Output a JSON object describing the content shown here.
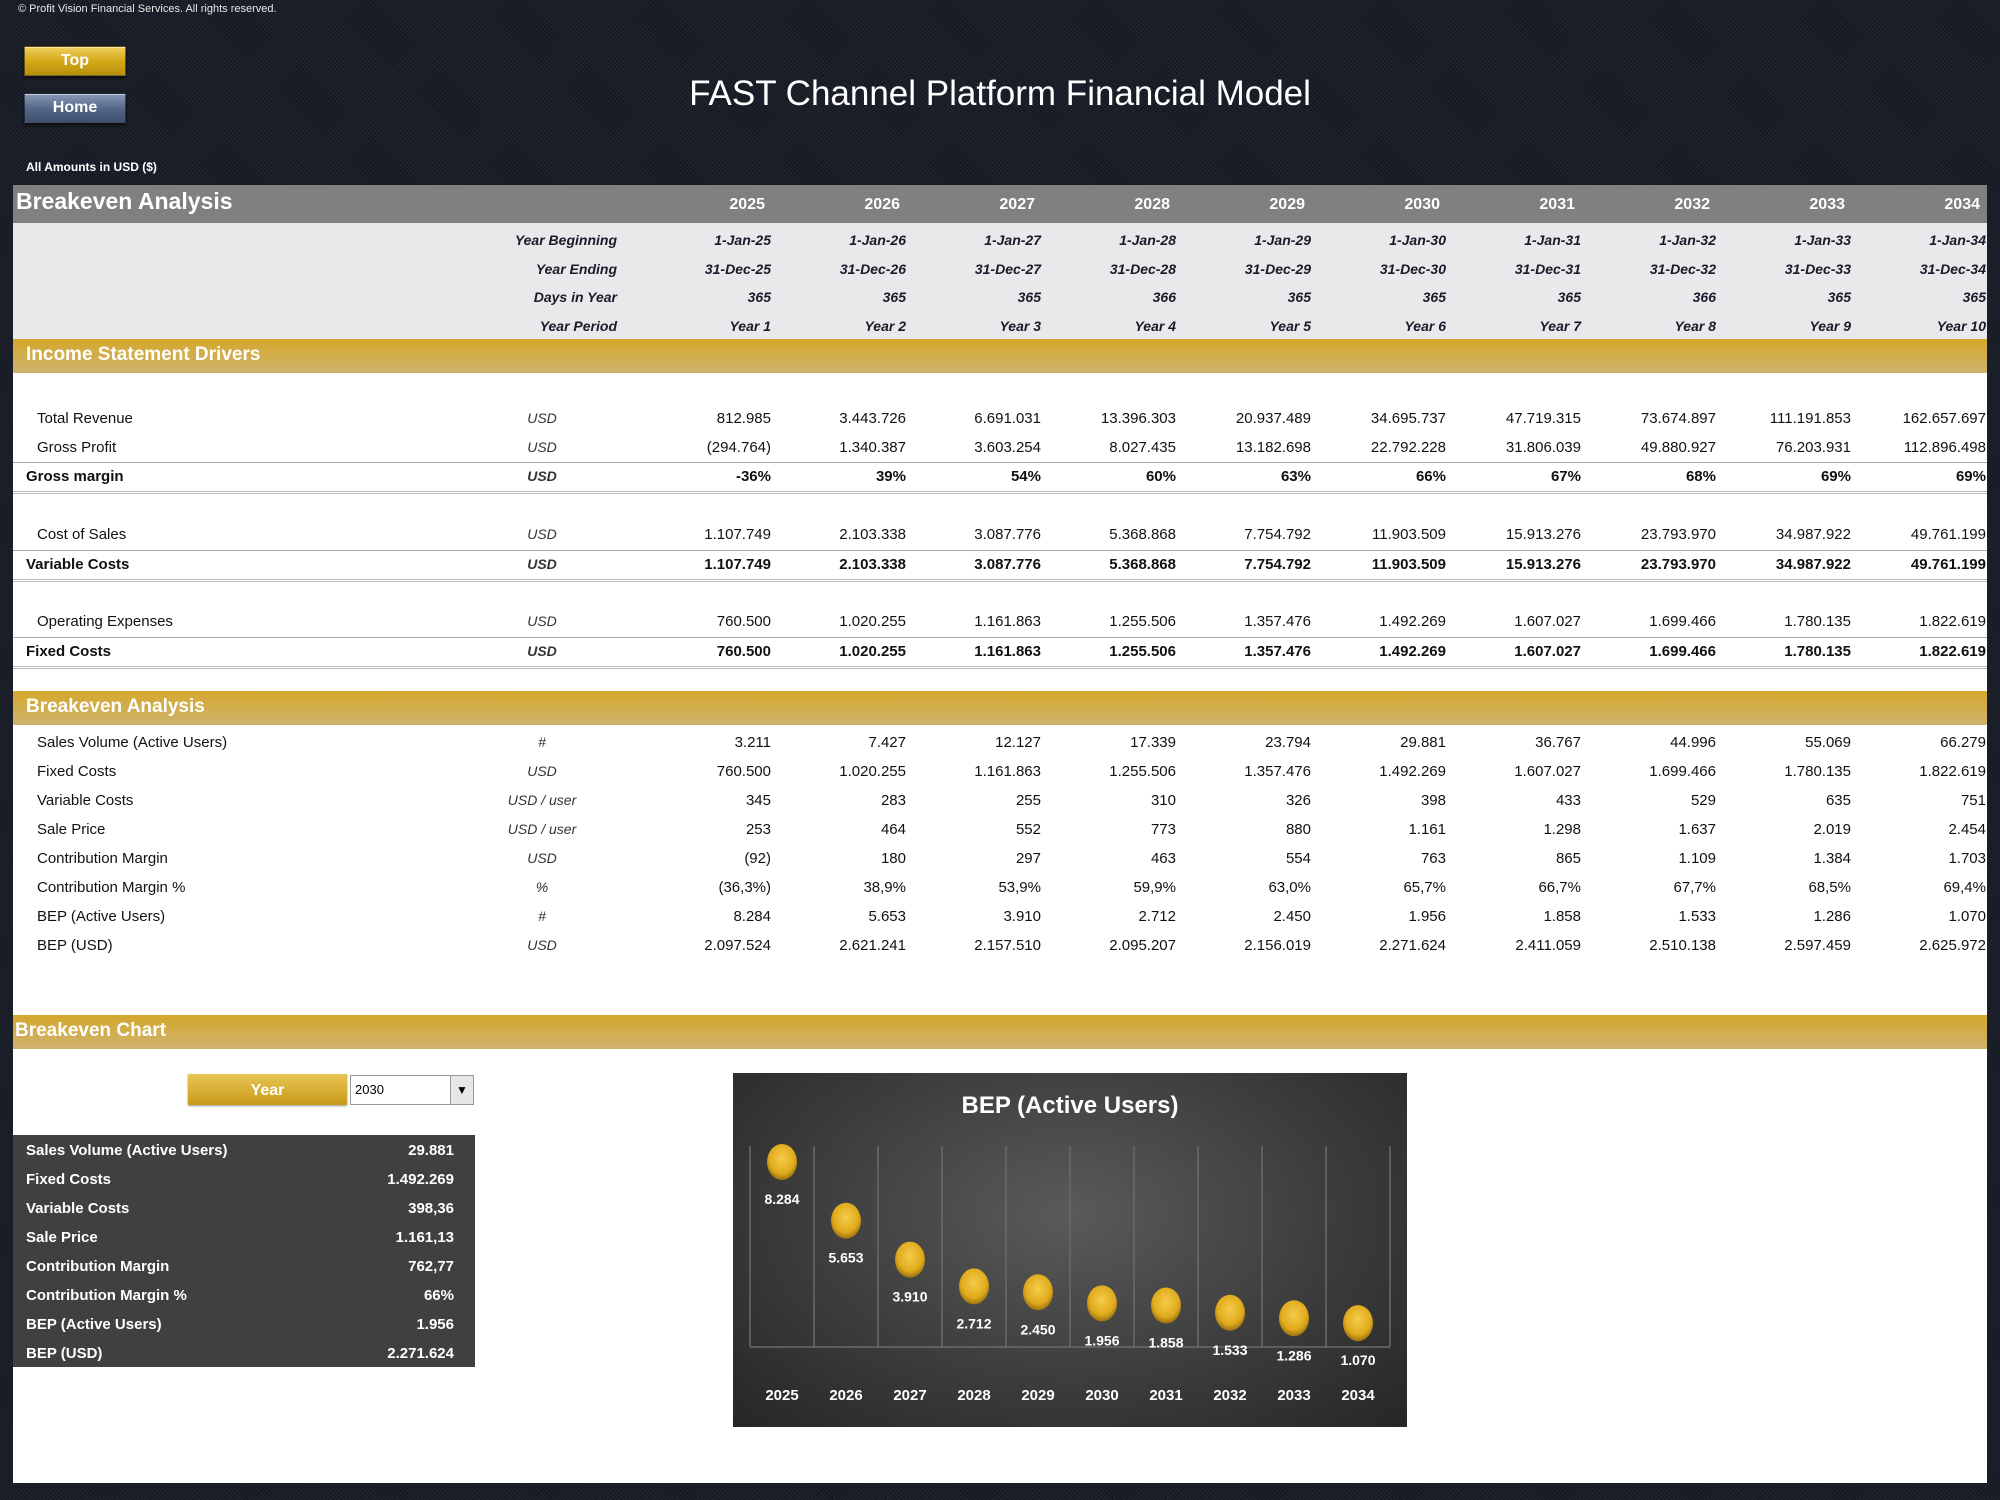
{
  "copyright": "© Profit Vision Financial Services. All rights reserved.",
  "nav": {
    "top_label": "Top",
    "home_label": "Home"
  },
  "title": "FAST Channel Platform Financial Model",
  "amounts_note": "All Amounts in  USD ($)",
  "header": {
    "title": "Breakeven Analysis",
    "years": [
      "2025",
      "2026",
      "2027",
      "2028",
      "2029",
      "2030",
      "2031",
      "2032",
      "2033",
      "2034"
    ],
    "date_rows": [
      {
        "label": "Year Beginning",
        "values": [
          "1-Jan-25",
          "1-Jan-26",
          "1-Jan-27",
          "1-Jan-28",
          "1-Jan-29",
          "1-Jan-30",
          "1-Jan-31",
          "1-Jan-32",
          "1-Jan-33",
          "1-Jan-34"
        ]
      },
      {
        "label": "Year Ending",
        "values": [
          "31-Dec-25",
          "31-Dec-26",
          "31-Dec-27",
          "31-Dec-28",
          "31-Dec-29",
          "31-Dec-30",
          "31-Dec-31",
          "31-Dec-32",
          "31-Dec-33",
          "31-Dec-34"
        ]
      },
      {
        "label": "Days in Year",
        "values": [
          "365",
          "365",
          "365",
          "366",
          "365",
          "365",
          "365",
          "366",
          "365",
          "365"
        ]
      },
      {
        "label": "Year Period",
        "values": [
          "Year 1",
          "Year 2",
          "Year 3",
          "Year 4",
          "Year 5",
          "Year 6",
          "Year 7",
          "Year 8",
          "Year 9",
          "Year 10"
        ]
      }
    ]
  },
  "income": {
    "title": "Income Statement Drivers",
    "rows": [
      {
        "label": "Total Revenue",
        "unit": "USD",
        "values": [
          "812.985",
          "3.443.726",
          "6.691.031",
          "13.396.303",
          "20.937.489",
          "34.695.737",
          "47.719.315",
          "73.674.897",
          "111.191.853",
          "162.657.697"
        ]
      },
      {
        "label": "Gross Profit",
        "unit": "USD",
        "values": [
          "(294.764)",
          "1.340.387",
          "3.603.254",
          "8.027.435",
          "13.182.698",
          "22.792.228",
          "31.806.039",
          "49.880.927",
          "76.203.931",
          "112.896.498"
        ]
      },
      {
        "label": "Gross margin",
        "unit": "USD",
        "values": [
          "-36%",
          "39%",
          "54%",
          "60%",
          "63%",
          "66%",
          "67%",
          "68%",
          "69%",
          "69%"
        ]
      },
      {
        "label": "Cost of Sales",
        "unit": "USD",
        "values": [
          "1.107.749",
          "2.103.338",
          "3.087.776",
          "5.368.868",
          "7.754.792",
          "11.903.509",
          "15.913.276",
          "23.793.970",
          "34.987.922",
          "49.761.199"
        ]
      },
      {
        "label": "Variable Costs",
        "unit": "USD",
        "values": [
          "1.107.749",
          "2.103.338",
          "3.087.776",
          "5.368.868",
          "7.754.792",
          "11.903.509",
          "15.913.276",
          "23.793.970",
          "34.987.922",
          "49.761.199"
        ]
      },
      {
        "label": "Operating Expenses",
        "unit": "USD",
        "values": [
          "760.500",
          "1.020.255",
          "1.161.863",
          "1.255.506",
          "1.357.476",
          "1.492.269",
          "1.607.027",
          "1.699.466",
          "1.780.135",
          "1.822.619"
        ]
      },
      {
        "label": "Fixed Costs",
        "unit": "USD",
        "values": [
          "760.500",
          "1.020.255",
          "1.161.863",
          "1.255.506",
          "1.357.476",
          "1.492.269",
          "1.607.027",
          "1.699.466",
          "1.780.135",
          "1.822.619"
        ]
      }
    ]
  },
  "breakeven": {
    "title": "Breakeven Analysis",
    "rows": [
      {
        "label": "Sales Volume (Active Users)",
        "unit": "#",
        "values": [
          "3.211",
          "7.427",
          "12.127",
          "17.339",
          "23.794",
          "29.881",
          "36.767",
          "44.996",
          "55.069",
          "66.279"
        ]
      },
      {
        "label": "Fixed Costs",
        "unit": "USD",
        "values": [
          "760.500",
          "1.020.255",
          "1.161.863",
          "1.255.506",
          "1.357.476",
          "1.492.269",
          "1.607.027",
          "1.699.466",
          "1.780.135",
          "1.822.619"
        ]
      },
      {
        "label": "Variable Costs",
        "unit": "USD / user",
        "values": [
          "345",
          "283",
          "255",
          "310",
          "326",
          "398",
          "433",
          "529",
          "635",
          "751"
        ]
      },
      {
        "label": "Sale Price",
        "unit": "USD / user",
        "values": [
          "253",
          "464",
          "552",
          "773",
          "880",
          "1.161",
          "1.298",
          "1.637",
          "2.019",
          "2.454"
        ]
      },
      {
        "label": "Contribution Margin",
        "unit": "USD",
        "values": [
          "(92)",
          "180",
          "297",
          "463",
          "554",
          "763",
          "865",
          "1.109",
          "1.384",
          "1.703"
        ]
      },
      {
        "label": "Contribution Margin %",
        "unit": "%",
        "values": [
          "(36,3%)",
          "38,9%",
          "53,9%",
          "59,9%",
          "63,0%",
          "65,7%",
          "66,7%",
          "67,7%",
          "68,5%",
          "69,4%"
        ]
      },
      {
        "label": "BEP (Active Users)",
        "unit": "#",
        "values": [
          "8.284",
          "5.653",
          "3.910",
          "2.712",
          "2.450",
          "1.956",
          "1.858",
          "1.533",
          "1.286",
          "1.070"
        ]
      },
      {
        "label": "BEP (USD)",
        "unit": "USD",
        "values": [
          "2.097.524",
          "2.621.241",
          "2.157.510",
          "2.095.207",
          "2.156.019",
          "2.271.624",
          "2.411.059",
          "2.510.138",
          "2.597.459",
          "2.625.972"
        ]
      }
    ]
  },
  "chart_section": {
    "title": "Breakeven Chart",
    "year_label": "Year",
    "year_selected": "2030",
    "summary": [
      {
        "label": "Sales Volume (Active Users)",
        "value": "29.881"
      },
      {
        "label": "Fixed Costs",
        "value": "1.492.269"
      },
      {
        "label": "Variable Costs",
        "value": "398,36"
      },
      {
        "label": "Sale Price",
        "value": "1.161,13"
      },
      {
        "label": "Contribution Margin",
        "value": "762,77"
      },
      {
        "label": "Contribution Margin %",
        "value": "66%"
      },
      {
        "label": "BEP (Active Users)",
        "value": "1.956"
      },
      {
        "label": "BEP (USD)",
        "value": "2.271.624"
      }
    ]
  },
  "chart_data": {
    "type": "scatter",
    "title": "BEP (Active Users)",
    "categories": [
      "2025",
      "2026",
      "2027",
      "2028",
      "2029",
      "2030",
      "2031",
      "2032",
      "2033",
      "2034"
    ],
    "values": [
      8284,
      5653,
      3910,
      2712,
      2450,
      1956,
      1858,
      1533,
      1286,
      1070
    ],
    "data_labels": [
      "8.284",
      "5.653",
      "3.910",
      "2.712",
      "2.450",
      "1.956",
      "1.858",
      "1.533",
      "1.286",
      "1.070"
    ],
    "ylim": [
      0,
      9000
    ],
    "grid": "vertical",
    "marker_color": "#e0aa1c"
  },
  "colors": {
    "gold": "#d4a72c",
    "header_gray": "#808080",
    "dark_box": "#404040"
  }
}
